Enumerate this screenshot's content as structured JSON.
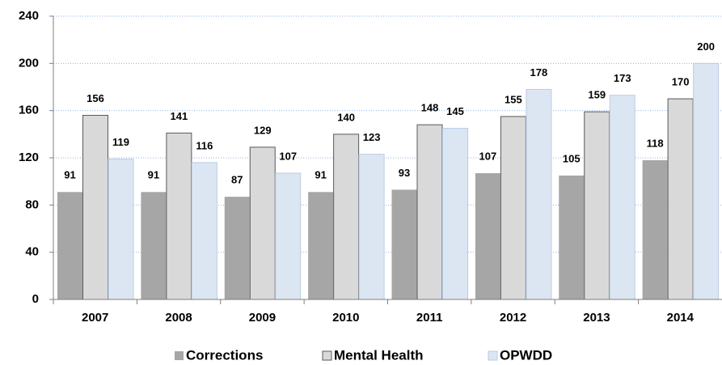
{
  "chart_data": {
    "type": "bar",
    "categories": [
      "2007",
      "2008",
      "2009",
      "2010",
      "2011",
      "2012",
      "2013",
      "2014"
    ],
    "series": [
      {
        "name": "Corrections",
        "color": "#a6a6a6",
        "values": [
          91,
          91,
          87,
          91,
          93,
          107,
          105,
          118
        ]
      },
      {
        "name": "Mental Health",
        "color": "#d9d9d9",
        "values": [
          156,
          141,
          129,
          140,
          148,
          155,
          159,
          170
        ]
      },
      {
        "name": "OPWDD",
        "color": "#dce6f2",
        "values": [
          119,
          116,
          107,
          123,
          145,
          178,
          173,
          200
        ]
      }
    ],
    "ylim": [
      0,
      240
    ],
    "yticks": [
      0,
      40,
      80,
      120,
      160,
      200,
      240
    ],
    "grid": true,
    "legend": "bottom"
  }
}
